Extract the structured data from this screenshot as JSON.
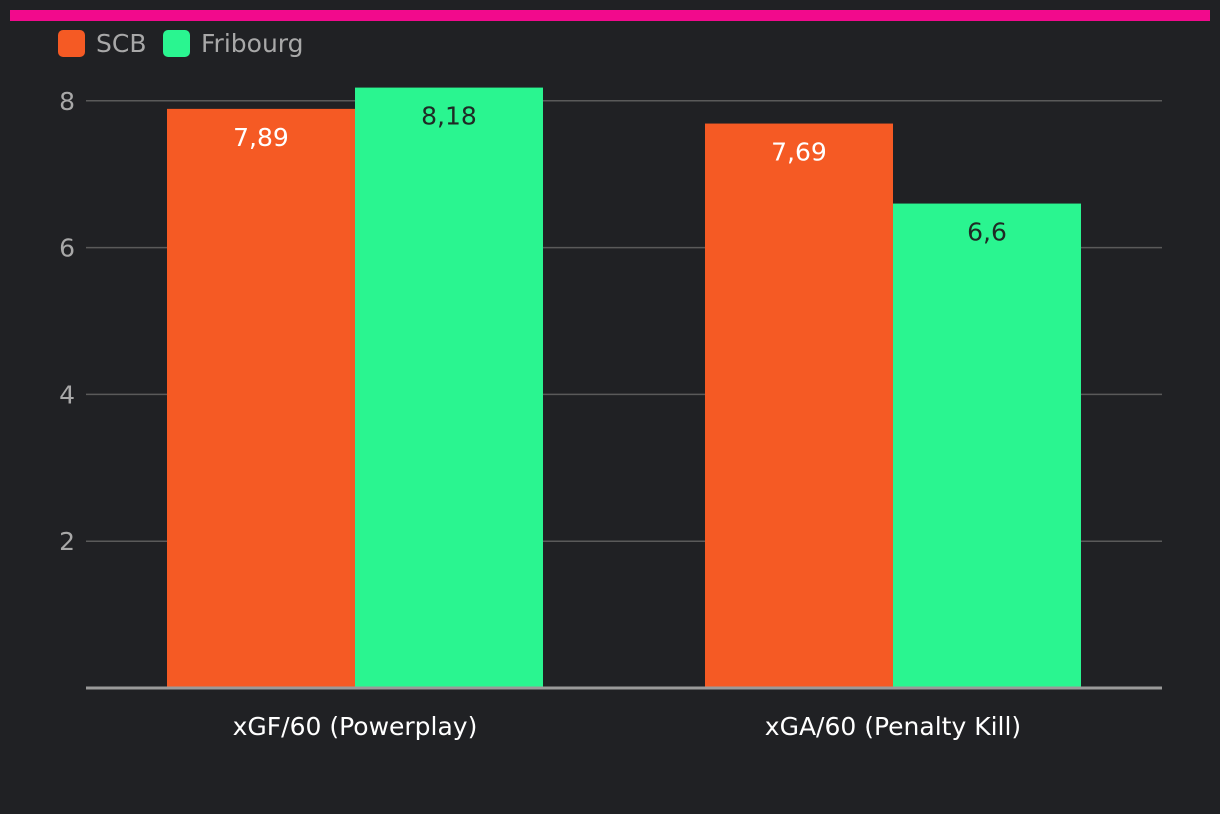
{
  "colors": {
    "background": "#202124",
    "accent_bar": "#f20a8c",
    "gridline": "#5a5a5a",
    "axis": "#9a9a9a"
  },
  "chart_data": {
    "type": "bar",
    "title": "",
    "xlabel": "",
    "ylabel": "",
    "categories": [
      "xGF/60 (Powerplay)",
      "xGA/60 (Penalty Kill)"
    ],
    "series": [
      {
        "name": "SCB",
        "color": "#f55a24",
        "label_color": "#ffffff",
        "values": [
          7.89,
          7.69
        ],
        "value_labels": [
          "7,89",
          "7,69"
        ]
      },
      {
        "name": "Fribourg",
        "color": "#2af590",
        "label_color": "#1f2a25",
        "values": [
          8.18,
          6.6
        ],
        "value_labels": [
          "8,18",
          "6,6"
        ]
      }
    ],
    "yticks": [
      2,
      4,
      6,
      8
    ],
    "ytick_labels": [
      "2",
      "4",
      "6",
      "8"
    ],
    "ylim": [
      0,
      8
    ],
    "grid": true,
    "legend_position": "top-left"
  }
}
